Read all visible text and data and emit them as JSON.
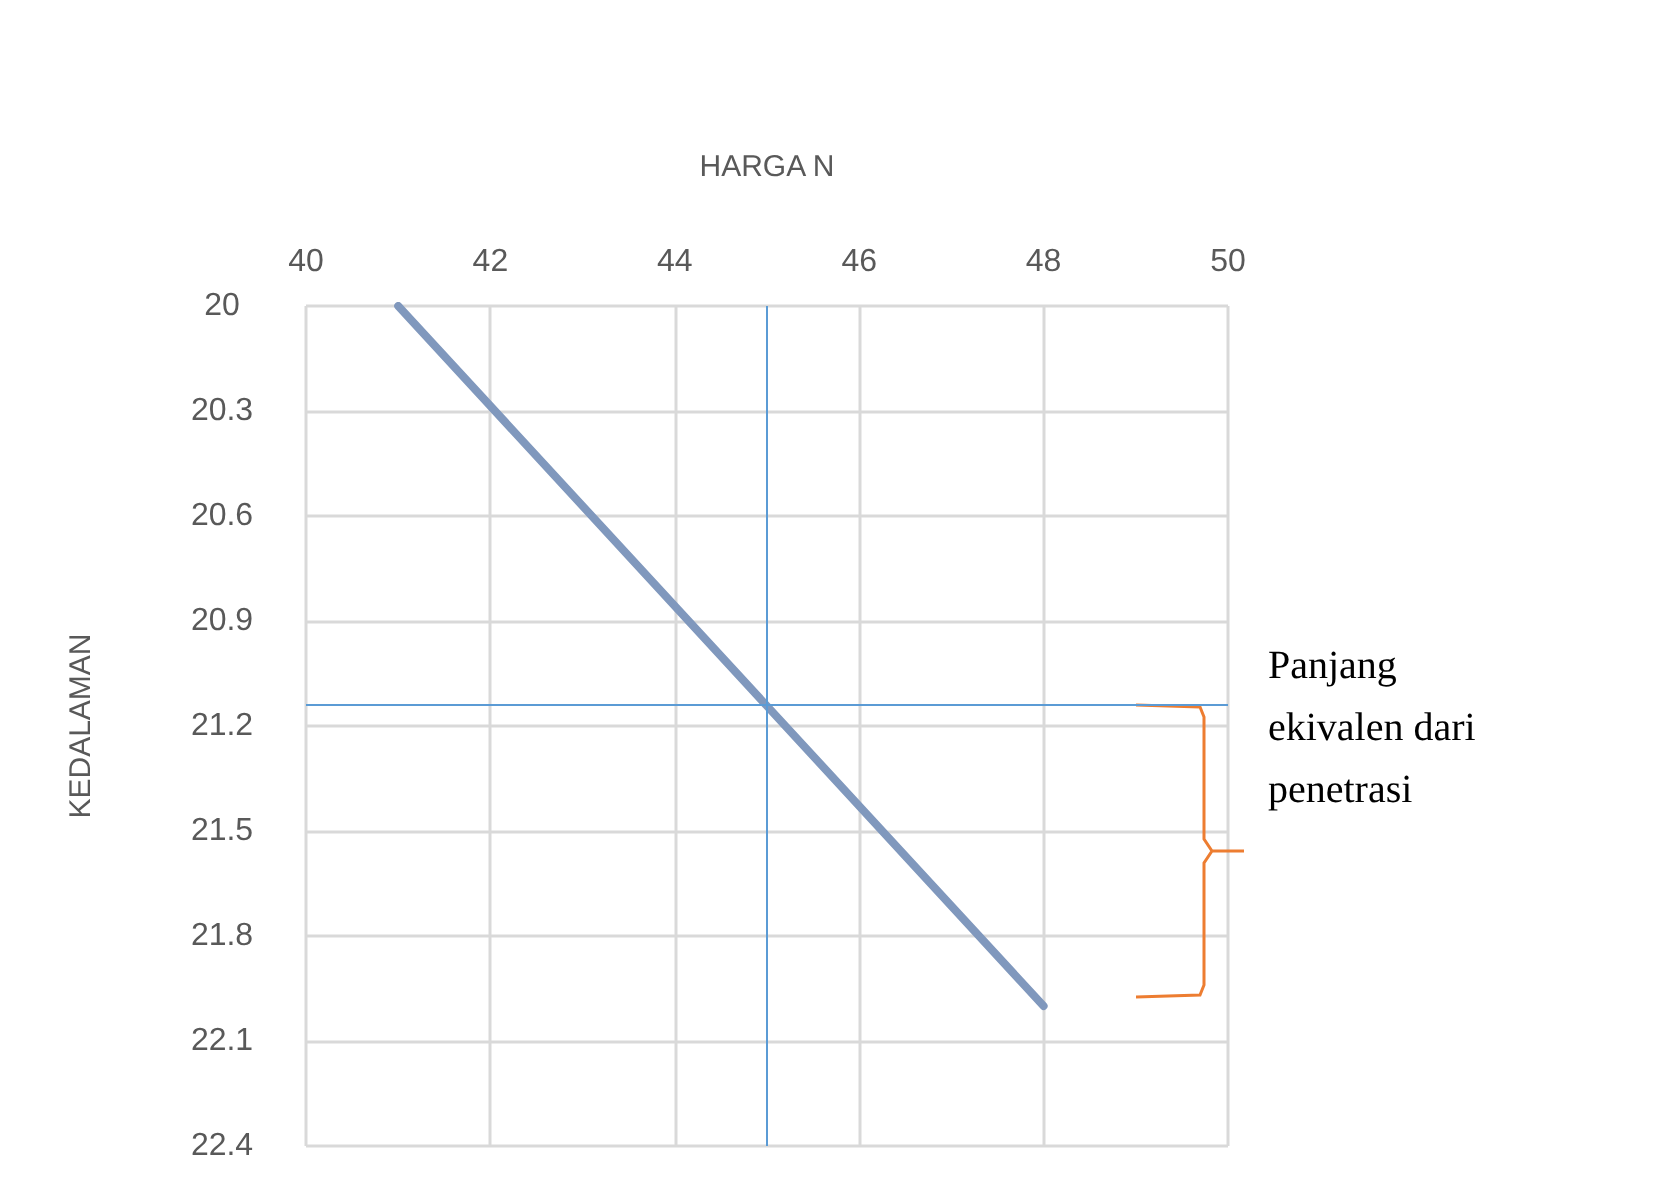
{
  "chart_data": {
    "type": "line",
    "xlabel": "HARGA N",
    "ylabel": "KEDALAMAN",
    "x": [
      41,
      48
    ],
    "series": [
      {
        "color": "#8098bd",
        "values": [
          20,
          22
        ]
      }
    ],
    "xlim": [
      40,
      50
    ],
    "xticks": [
      40,
      42,
      44,
      46,
      48,
      50
    ],
    "ylim": [
      22.4,
      20
    ],
    "yticks": [
      20,
      20.3,
      20.6,
      20.9,
      21.2,
      21.5,
      21.8,
      22.1,
      22.4
    ],
    "grid": true,
    "marker": "none",
    "line_style": "solid",
    "ref_lines": [
      {
        "axis": "x",
        "value": 45,
        "color": "#5b9bd5"
      },
      {
        "axis": "y",
        "value": 21.14,
        "color": "#5b9bd5"
      }
    ],
    "annotations": [
      "Panjang ekivalen dari penetrasi"
    ]
  }
}
